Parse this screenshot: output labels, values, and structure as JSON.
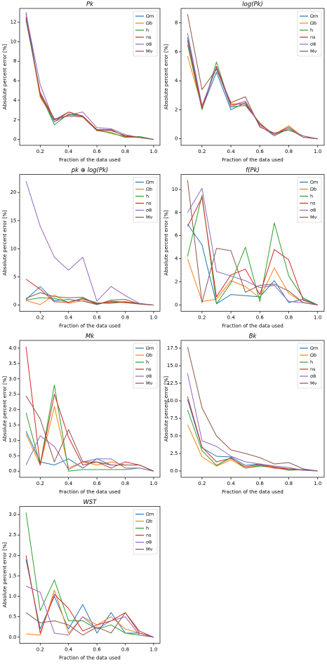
{
  "chart_data": [
    {
      "type": "line",
      "title": "Pk",
      "xlabel": "Fraction of the data used",
      "ylabel": "Absolute percent error [%]",
      "legend": "upper right",
      "x": [
        0.1,
        0.2,
        0.3,
        0.4,
        0.5,
        0.6,
        0.7,
        0.8,
        0.9,
        1.0
      ],
      "xlim": [
        0.055,
        1.045
      ],
      "xticks": [
        0.2,
        0.4,
        0.6,
        0.8,
        {
          "value": 1,
          "label": "1.0"
        }
      ],
      "ylim": [
        -0.6,
        13.4
      ],
      "yticks": [
        0,
        2,
        4,
        6,
        8,
        10,
        12
      ],
      "series": [
        {
          "name": "Ωm",
          "color": "#1f77b4",
          "values": [
            13.0,
            4.5,
            1.8,
            2.8,
            2.3,
            1.0,
            1.0,
            0.3,
            0.2,
            0
          ]
        },
        {
          "name": "Ωb",
          "color": "#ff7f0e",
          "values": [
            12.5,
            4.3,
            2.0,
            2.5,
            2.4,
            1.0,
            0.6,
            0.3,
            0.2,
            0
          ]
        },
        {
          "name": "h",
          "color": "#2ca02c",
          "values": [
            12.2,
            4.7,
            1.5,
            2.6,
            2.4,
            0.9,
            0.7,
            0.2,
            0.3,
            0
          ]
        },
        {
          "name": "ns",
          "color": "#d62728",
          "values": [
            12.5,
            4.6,
            2.0,
            2.8,
            2.4,
            1.0,
            1.0,
            0.3,
            0.2,
            0
          ]
        },
        {
          "name": "σ8",
          "color": "#9467bd",
          "values": [
            12.8,
            5.6,
            1.8,
            2.5,
            2.8,
            1.2,
            1.1,
            0.5,
            0.2,
            0
          ]
        },
        {
          "name": "Mν",
          "color": "#8c564b",
          "values": [
            12.3,
            4.8,
            2.1,
            2.4,
            2.3,
            0.9,
            0.9,
            0.4,
            0.2,
            0
          ]
        }
      ]
    },
    {
      "type": "line",
      "title": "log(Pk)",
      "xlabel": "Fraction of the data used",
      "ylabel": "Absolute percent error [%]",
      "legend": "upper right",
      "x": [
        0.1,
        0.2,
        0.3,
        0.4,
        0.5,
        0.6,
        0.7,
        0.8,
        0.9,
        1.0
      ],
      "xlim": [
        0.055,
        1.045
      ],
      "xticks": [
        0.2,
        0.4,
        0.6,
        0.8,
        {
          "value": 1,
          "label": "1.0"
        }
      ],
      "ylim": [
        -0.45,
        9.0
      ],
      "yticks": [
        0,
        2,
        4,
        6,
        8
      ],
      "series": [
        {
          "name": "Ωm",
          "color": "#1f77b4",
          "values": [
            7.0,
            2.1,
            4.6,
            2.0,
            2.5,
            1.0,
            0.3,
            0.8,
            0.1,
            0
          ]
        },
        {
          "name": "Ωb",
          "color": "#ff7f0e",
          "values": [
            5.7,
            2.2,
            5.0,
            2.3,
            2.6,
            1.0,
            0.3,
            0.9,
            0.1,
            0
          ]
        },
        {
          "name": "h",
          "color": "#2ca02c",
          "values": [
            6.5,
            2.0,
            5.3,
            2.2,
            2.3,
            1.1,
            0.2,
            0.7,
            0.1,
            0
          ]
        },
        {
          "name": "ns",
          "color": "#d62728",
          "values": [
            6.8,
            2.1,
            5.0,
            2.4,
            2.4,
            1.0,
            0.3,
            0.8,
            0.1,
            0
          ]
        },
        {
          "name": "σ8",
          "color": "#9467bd",
          "values": [
            7.3,
            2.3,
            4.9,
            2.2,
            2.6,
            0.9,
            0.2,
            0.8,
            0.1,
            0
          ]
        },
        {
          "name": "Mν",
          "color": "#8c564b",
          "values": [
            8.6,
            3.4,
            4.8,
            2.5,
            2.9,
            0.8,
            0.4,
            0.6,
            0.2,
            0
          ]
        }
      ]
    },
    {
      "type": "line",
      "title": "pk ⊕ log(Pk)",
      "xlabel": "Fraction of the data used",
      "ylabel": "Absolute percent error [%]",
      "legend": "upper right",
      "x": [
        0.1,
        0.2,
        0.3,
        0.4,
        0.5,
        0.6,
        0.7,
        0.8,
        0.9,
        1.0
      ],
      "xlim": [
        0.055,
        1.045
      ],
      "xticks": [
        0.2,
        0.4,
        0.6,
        0.8,
        {
          "value": 1,
          "label": "1.0"
        }
      ],
      "ylim": [
        -1.1,
        23.2
      ],
      "yticks": [
        0,
        5,
        10,
        15,
        20
      ],
      "series": [
        {
          "name": "Ωm",
          "color": "#1f77b4",
          "values": [
            1.0,
            3.3,
            0.8,
            1.0,
            0.7,
            0.1,
            0.7,
            0.5,
            0.2,
            0
          ]
        },
        {
          "name": "Ωb",
          "color": "#ff7f0e",
          "values": [
            0.8,
            0.1,
            1.8,
            0.3,
            0.8,
            0.2,
            0.6,
            0.4,
            0.2,
            0
          ]
        },
        {
          "name": "h",
          "color": "#2ca02c",
          "values": [
            0.9,
            1.3,
            1.2,
            0.5,
            1.2,
            0.4,
            0.3,
            0.6,
            0.3,
            0
          ]
        },
        {
          "name": "ns",
          "color": "#d62728",
          "values": [
            4.6,
            2.8,
            0.6,
            0.5,
            1.1,
            0.3,
            0.5,
            0.6,
            0.2,
            0
          ]
        },
        {
          "name": "σ8",
          "color": "#9467bd",
          "values": [
            22.0,
            14.0,
            8.5,
            6.2,
            8.5,
            0.7,
            3.3,
            1.7,
            0.3,
            0
          ]
        },
        {
          "name": "Mν",
          "color": "#8c564b",
          "values": [
            1.2,
            2.2,
            1.5,
            1.3,
            1.4,
            0.1,
            0.9,
            1.0,
            0.2,
            0
          ]
        }
      ]
    },
    {
      "type": "line",
      "title": "f(Pk)",
      "xlabel": "Fraction of the data used",
      "ylabel": "Absolute percent error [%]",
      "legend": "upper right",
      "x": [
        0.1,
        0.2,
        0.3,
        0.4,
        0.5,
        0.6,
        0.7,
        0.8,
        0.9,
        1.0
      ],
      "xlim": [
        0.055,
        1.045
      ],
      "xticks": [
        0.2,
        0.4,
        0.6,
        0.8,
        {
          "value": 1,
          "label": "1.0"
        }
      ],
      "ylim": [
        -0.55,
        11.3
      ],
      "yticks": [
        0,
        2,
        4,
        6,
        8,
        10
      ],
      "series": [
        {
          "name": "Ωm",
          "color": "#1f77b4",
          "values": [
            7.0,
            5.2,
            0.1,
            0.9,
            0.8,
            0.7,
            2.1,
            0.2,
            0.5,
            0
          ]
        },
        {
          "name": "Ωb",
          "color": "#ff7f0e",
          "values": [
            4.0,
            0.3,
            0.5,
            2.1,
            1.6,
            0.6,
            3.2,
            1.0,
            0.2,
            0
          ]
        },
        {
          "name": "h",
          "color": "#2ca02c",
          "values": [
            4.2,
            9.5,
            0.1,
            1.9,
            5.0,
            0.3,
            7.1,
            2.5,
            0.6,
            0
          ]
        },
        {
          "name": "ns",
          "color": "#d62728",
          "values": [
            6.8,
            9.3,
            0.7,
            2.6,
            3.1,
            0.9,
            4.8,
            3.9,
            0.4,
            0
          ]
        },
        {
          "name": "σ8",
          "color": "#9467bd",
          "values": [
            8.0,
            10.1,
            2.9,
            2.5,
            2.1,
            1.5,
            1.7,
            0.3,
            0.2,
            0
          ]
        },
        {
          "name": "Mν",
          "color": "#8c564b",
          "values": [
            10.8,
            0.2,
            4.9,
            4.7,
            1.1,
            1.7,
            1.8,
            1.2,
            0.2,
            0
          ]
        }
      ]
    },
    {
      "type": "line",
      "title": "Mk",
      "xlabel": "Fraction of the data used",
      "ylabel": "Absolute percent error [%]",
      "legend": "upper right",
      "x": [
        0.1,
        0.2,
        0.3,
        0.4,
        0.5,
        0.6,
        0.7,
        0.8,
        0.9,
        1.0
      ],
      "xlim": [
        0.055,
        1.045
      ],
      "xticks": [
        0.2,
        0.4,
        0.6,
        0.8,
        {
          "value": 1,
          "label": "1.0"
        }
      ],
      "ylim": [
        -0.2,
        4.25
      ],
      "yticks": [
        {
          "value": 0,
          "label": "0.0"
        },
        0.5,
        {
          "value": 1,
          "label": "1.0"
        },
        1.5,
        {
          "value": 2,
          "label": "2.0"
        },
        2.5,
        {
          "value": 3,
          "label": "3.0"
        },
        3.5,
        {
          "value": 4,
          "label": "4.0"
        }
      ],
      "series": [
        {
          "name": "Ωm",
          "color": "#1f77b4",
          "values": [
            1.3,
            0.3,
            0.2,
            0.4,
            0.1,
            0.4,
            0.2,
            0.2,
            0.2,
            0
          ]
        },
        {
          "name": "Ωb",
          "color": "#ff7f0e",
          "values": [
            1.2,
            0.2,
            2.1,
            0.1,
            0.3,
            0.2,
            0.3,
            0.2,
            0.2,
            0
          ]
        },
        {
          "name": "h",
          "color": "#2ca02c",
          "values": [
            1.9,
            0.2,
            2.8,
            0.0,
            0.05,
            0.05,
            0.05,
            0.05,
            0.1,
            0
          ]
        },
        {
          "name": "ns",
          "color": "#d62728",
          "values": [
            4.05,
            0.2,
            2.5,
            1.1,
            0.2,
            0.3,
            0.1,
            0.3,
            0.2,
            0
          ]
        },
        {
          "name": "σ8",
          "color": "#9467bd",
          "values": [
            0.2,
            1.15,
            0.8,
            0.05,
            0.3,
            0.4,
            0.4,
            0.1,
            0.1,
            0
          ]
        },
        {
          "name": "Mν",
          "color": "#8c564b",
          "values": [
            2.45,
            1.7,
            0.3,
            1.35,
            0.3,
            0.3,
            0.2,
            0.2,
            0.2,
            0
          ]
        }
      ]
    },
    {
      "type": "line",
      "title": "Bk",
      "xlabel": "Fraction of the data used",
      "ylabel": "Absolute percent error [%]",
      "legend": "upper right",
      "x": [
        0.1,
        0.2,
        0.3,
        0.4,
        0.5,
        0.6,
        0.7,
        0.8,
        0.9,
        1.0
      ],
      "xlim": [
        0.055,
        1.045
      ],
      "xticks": [
        0.2,
        0.4,
        0.6,
        0.8,
        {
          "value": 1,
          "label": "1.0"
        }
      ],
      "ylim": [
        -0.9,
        18.6
      ],
      "yticks": [
        {
          "value": 0,
          "label": "0.0"
        },
        2.5,
        {
          "value": 5,
          "label": "5.0"
        },
        7.5,
        {
          "value": 10,
          "label": "10.0"
        },
        12.5,
        {
          "value": 15,
          "label": "15.0"
        },
        17.5
      ],
      "series": [
        {
          "name": "Ωm",
          "color": "#1f77b4",
          "values": [
            10.2,
            3.3,
            2.1,
            2.0,
            0.8,
            1.0,
            0.6,
            0.3,
            0.2,
            0
          ]
        },
        {
          "name": "Ωb",
          "color": "#ff7f0e",
          "values": [
            6.6,
            2.0,
            0.7,
            1.6,
            0.4,
            0.8,
            0.6,
            0.2,
            0.2,
            0
          ]
        },
        {
          "name": "h",
          "color": "#2ca02c",
          "values": [
            8.7,
            2.9,
            0.8,
            1.9,
            0.4,
            0.7,
            0.5,
            0.1,
            0.2,
            0
          ]
        },
        {
          "name": "ns",
          "color": "#d62728",
          "values": [
            10.6,
            3.4,
            1.3,
            1.8,
            0.6,
            0.9,
            0.4,
            0.3,
            0.1,
            0
          ]
        },
        {
          "name": "σ8",
          "color": "#9467bd",
          "values": [
            13.9,
            4.3,
            3.5,
            2.1,
            1.3,
            1.0,
            0.7,
            0.5,
            0.1,
            0
          ]
        },
        {
          "name": "Mν",
          "color": "#8c564b",
          "values": [
            17.7,
            9.0,
            5.0,
            3.0,
            2.5,
            1.9,
            1.0,
            1.2,
            0.3,
            0
          ]
        }
      ]
    },
    {
      "type": "line",
      "title": "WST",
      "xlabel": "Fraction of the data used",
      "ylabel": "Absolute percent error [%]",
      "legend": "upper right",
      "x": [
        0.1,
        0.2,
        0.3,
        0.4,
        0.5,
        0.6,
        0.7,
        0.8,
        0.9,
        1.0
      ],
      "xlim": [
        0.055,
        1.045
      ],
      "xticks": [
        0.2,
        0.4,
        0.6,
        0.8,
        {
          "value": 1,
          "label": "1.0"
        }
      ],
      "ylim": [
        -0.15,
        3.2
      ],
      "yticks": [
        {
          "value": 0,
          "label": "0.0"
        },
        0.5,
        {
          "value": 1,
          "label": "1.0"
        },
        1.5,
        {
          "value": 2,
          "label": "2.0"
        },
        2.5,
        {
          "value": 3,
          "label": "3.0"
        }
      ],
      "series": [
        {
          "name": "Ωm",
          "color": "#1f77b4",
          "values": [
            1.9,
            0.2,
            1.0,
            0.2,
            0.8,
            0.1,
            0.6,
            0.1,
            0.1,
            0
          ]
        },
        {
          "name": "Ωb",
          "color": "#ff7f0e",
          "values": [
            0.08,
            0.05,
            1.15,
            0.1,
            0.5,
            0.3,
            0.5,
            0.2,
            0.1,
            0
          ]
        },
        {
          "name": "h",
          "color": "#2ca02c",
          "values": [
            3.05,
            0.65,
            1.4,
            0.4,
            0.4,
            0.2,
            0.3,
            0.1,
            0.05,
            0
          ]
        },
        {
          "name": "ns",
          "color": "#d62728",
          "values": [
            2.0,
            0.1,
            1.05,
            0.7,
            0.15,
            0.3,
            0.4,
            0.6,
            0.1,
            0
          ]
        },
        {
          "name": "σ8",
          "color": "#9467bd",
          "values": [
            1.25,
            1.1,
            0.1,
            0.05,
            0.5,
            0.2,
            0.4,
            0.5,
            0.05,
            0
          ]
        },
        {
          "name": "Mν",
          "color": "#8c564b",
          "values": [
            0.6,
            0.35,
            0.4,
            0.3,
            0.05,
            0.25,
            0.1,
            0.6,
            0.15,
            0
          ]
        }
      ]
    }
  ]
}
